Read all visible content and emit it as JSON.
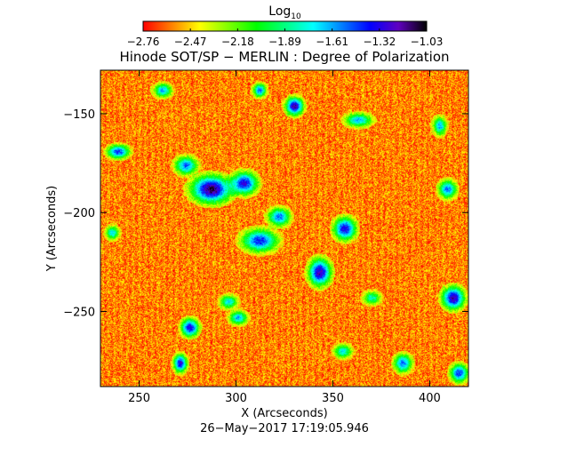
{
  "chart_data": {
    "type": "heatmap",
    "title": "Hinode SOT/SP − MERLIN : Degree of Polarization",
    "xlabel": "X (Arcseconds)",
    "ylabel": "Y (Arcseconds)",
    "xlim": [
      230,
      420
    ],
    "ylim": [
      -288,
      -128
    ],
    "x_ticks": [
      250,
      300,
      350,
      400
    ],
    "y_ticks": [
      -150,
      -200,
      -250
    ],
    "timestamp": "26−May−2017 17:19:05.946",
    "colorbar": {
      "title_base": "Log",
      "title_sub": "10",
      "ticks": [
        "−2.76",
        "−2.47",
        "−2.18",
        "−1.89",
        "−1.61",
        "−1.32",
        "−1.03"
      ],
      "range": [
        -2.76,
        -1.03
      ],
      "colors": [
        "#ff0000",
        "#ff8000",
        "#ffff00",
        "#80ff00",
        "#00ff00",
        "#00ff80",
        "#00ffff",
        "#0080ff",
        "#0000ff",
        "#6000c0",
        "#000000"
      ]
    },
    "background_level": -2.6,
    "enhanced_regions_data_units": [
      {
        "x": 239,
        "y": -169,
        "rx": 5,
        "ry": 3,
        "level": -1.4
      },
      {
        "x": 262,
        "y": -138,
        "rx": 4,
        "ry": 3,
        "level": -1.6
      },
      {
        "x": 274,
        "y": -176,
        "rx": 5,
        "ry": 4,
        "level": -1.5
      },
      {
        "x": 287,
        "y": -188,
        "rx": 9,
        "ry": 6,
        "level": -1.1
      },
      {
        "x": 304,
        "y": -185,
        "rx": 6,
        "ry": 5,
        "level": -1.3
      },
      {
        "x": 312,
        "y": -214,
        "rx": 8,
        "ry": 5,
        "level": -1.4
      },
      {
        "x": 322,
        "y": -202,
        "rx": 5,
        "ry": 4,
        "level": -1.5
      },
      {
        "x": 330,
        "y": -146,
        "rx": 4,
        "ry": 4,
        "level": -1.2
      },
      {
        "x": 343,
        "y": -230,
        "rx": 5,
        "ry": 6,
        "level": -1.2
      },
      {
        "x": 356,
        "y": -208,
        "rx": 5,
        "ry": 5,
        "level": -1.3
      },
      {
        "x": 363,
        "y": -153,
        "rx": 6,
        "ry": 3,
        "level": -1.6
      },
      {
        "x": 312,
        "y": -138,
        "rx": 3,
        "ry": 3,
        "level": -1.5
      },
      {
        "x": 412,
        "y": -243,
        "rx": 5,
        "ry": 5,
        "level": -1.2
      },
      {
        "x": 409,
        "y": -188,
        "rx": 4,
        "ry": 4,
        "level": -1.5
      },
      {
        "x": 405,
        "y": -156,
        "rx": 3,
        "ry": 4,
        "level": -1.6
      },
      {
        "x": 386,
        "y": -276,
        "rx": 4,
        "ry": 4,
        "level": -1.5
      },
      {
        "x": 415,
        "y": -281,
        "rx": 4,
        "ry": 4,
        "level": -1.4
      },
      {
        "x": 276,
        "y": -258,
        "rx": 4,
        "ry": 4,
        "level": -1.3
      },
      {
        "x": 271,
        "y": -276,
        "rx": 3,
        "ry": 4,
        "level": -1.3
      },
      {
        "x": 301,
        "y": -253,
        "rx": 4,
        "ry": 3,
        "level": -1.6
      },
      {
        "x": 355,
        "y": -270,
        "rx": 4,
        "ry": 3,
        "level": -1.7
      },
      {
        "x": 236,
        "y": -210,
        "rx": 3,
        "ry": 3,
        "level": -1.7
      },
      {
        "x": 296,
        "y": -245,
        "rx": 4,
        "ry": 3,
        "level": -1.7
      },
      {
        "x": 370,
        "y": -243,
        "rx": 4,
        "ry": 3,
        "level": -1.8
      }
    ]
  }
}
